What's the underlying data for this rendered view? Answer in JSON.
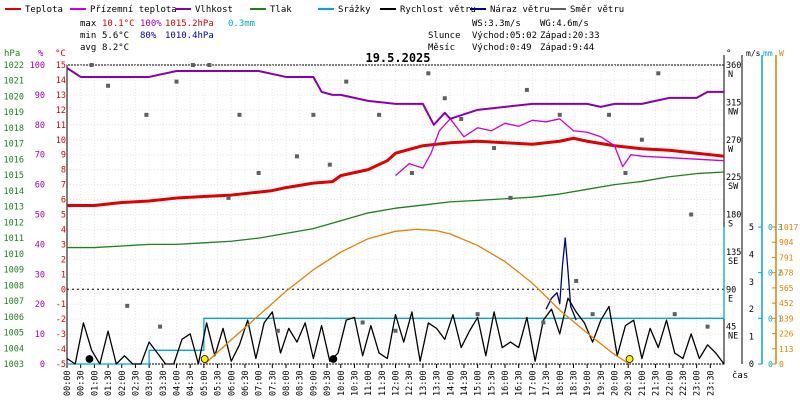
{
  "legend": [
    {
      "label": "Teplota",
      "color": "#e00000"
    },
    {
      "label": "Přízemní teplota",
      "color": "#d000d0"
    },
    {
      "label": "Vlhkost",
      "color": "#8a00b0"
    },
    {
      "label": "Tlak",
      "color": "#208020"
    },
    {
      "label": "Srážky",
      "color": "#00a8d8"
    },
    {
      "label": "Rychlost větru",
      "color": "#000000"
    },
    {
      "label": "Náraz větru",
      "color": "#000080"
    },
    {
      "label": "Směr větru",
      "color": "#606060"
    }
  ],
  "stats": {
    "max": {
      "label": "max",
      "temp": "10.1°C",
      "hum": "100%",
      "press": "1015.2hPa",
      "rain": "0.3mm"
    },
    "min": {
      "label": "min",
      "temp": "5.6°C",
      "hum": "80%",
      "press": "1010.4hPa"
    },
    "avg": {
      "label": "avg",
      "temp": "8.2°C"
    }
  },
  "wind_info": {
    "ws": "WS:3.3m/s",
    "wg": "WG:4.6m/s"
  },
  "sun_info": {
    "label": "Slunce",
    "rise": "Východ:05:02",
    "set": "Západ:20:33"
  },
  "moon_info": {
    "label": "Měsíc",
    "rise": "Východ:0:49",
    "set": "Západ:9:44"
  },
  "chart_data": {
    "type": "line",
    "title": "19.5.2025",
    "xlabel": "čas",
    "x_ticks": [
      "00:00",
      "00:30",
      "01:00",
      "01:30",
      "02:00",
      "02:30",
      "03:00",
      "03:30",
      "04:00",
      "04:30",
      "05:00",
      "05:30",
      "06:00",
      "06:30",
      "07:00",
      "07:30",
      "08:00",
      "08:30",
      "09:00",
      "09:30",
      "10:00",
      "10:30",
      "11:00",
      "11:30",
      "12:00",
      "12:30",
      "13:00",
      "13:30",
      "14:00",
      "14:30",
      "15:00",
      "15:30",
      "16:00",
      "16:30",
      "17:00",
      "17:30",
      "18:00",
      "18:30",
      "19:00",
      "19:30",
      "20:00",
      "20:30",
      "21:00",
      "21:30",
      "22:00",
      "22:30",
      "23:00",
      "23:30"
    ],
    "axes": {
      "hpa": {
        "label": "hPa",
        "color": "#208020",
        "ticks": [
          1003,
          1004,
          1005,
          1006,
          1007,
          1008,
          1009,
          1010,
          1011,
          1012,
          1013,
          1014,
          1015,
          1016,
          1017,
          1018,
          1019,
          1020,
          1021,
          1022
        ]
      },
      "pct": {
        "label": "%",
        "color": "#a000c0",
        "ticks": [
          0,
          10,
          20,
          30,
          40,
          50,
          60,
          70,
          80,
          90,
          100
        ]
      },
      "degc": {
        "label": "°C",
        "color": "#e00000",
        "ticks": [
          -5,
          -4,
          -3,
          -2,
          -1,
          0,
          1,
          2,
          3,
          4,
          5,
          6,
          7,
          8,
          9,
          10,
          11,
          12,
          13,
          14,
          15
        ]
      },
      "dir": {
        "label": "°",
        "ticks": [
          "360",
          "315",
          "270",
          "225",
          "180",
          "135",
          "90",
          "45"
        ],
        "names": [
          "N",
          "NW",
          "W",
          "SW",
          "S",
          "SE",
          "E",
          "NE"
        ]
      },
      "ms": {
        "label": "m/s",
        "ticks": [
          0,
          1,
          2,
          3,
          4,
          5
        ]
      },
      "mm": {
        "label": "mm",
        "color": "#00a8d8",
        "ticks": [
          0,
          0.1,
          0.2,
          0.3
        ],
        "display": [
          "0",
          "0.1",
          "0.2",
          "0.3"
        ]
      },
      "wm2": {
        "label": "W",
        "color": "#e88000",
        "ticks": [
          0,
          113,
          226,
          339,
          452,
          565,
          678,
          791,
          904,
          1017
        ]
      }
    },
    "series": [
      {
        "name": "Teplota",
        "color": "#e00000",
        "axis": "degc",
        "x": [
          0,
          1,
          2,
          3,
          4,
          5,
          6,
          7,
          7.5,
          8,
          9,
          9.7,
          10,
          11,
          11.7,
          12,
          13,
          14,
          15,
          16,
          17,
          18,
          18.5,
          19,
          20,
          21,
          22,
          23,
          24
        ],
        "y": [
          5.6,
          5.6,
          5.8,
          5.9,
          6.1,
          6.2,
          6.3,
          6.5,
          6.6,
          6.8,
          7.1,
          7.2,
          7.6,
          8.0,
          8.6,
          9.1,
          9.6,
          9.8,
          9.9,
          9.8,
          9.7,
          9.9,
          10.1,
          9.9,
          9.6,
          9.4,
          9.3,
          9.1,
          8.9
        ]
      },
      {
        "name": "Přízemní teplota",
        "color": "#d000d0",
        "axis": "degc",
        "x": [
          12,
          12.5,
          13,
          13.3,
          13.6,
          14,
          14.5,
          15,
          15.5,
          16,
          16.5,
          17,
          17.5,
          18,
          18.5,
          19,
          19.5,
          20,
          20.3,
          20.6,
          21,
          22,
          23,
          24
        ],
        "y": [
          7.6,
          8.4,
          8.1,
          9.1,
          10.6,
          11.4,
          10.2,
          10.8,
          10.6,
          11.1,
          10.9,
          11.3,
          11.2,
          11.4,
          10.6,
          10.5,
          10.2,
          9.6,
          8.2,
          9.0,
          8.9,
          8.8,
          8.7,
          8.6
        ]
      },
      {
        "name": "Vlhkost",
        "color": "#8a00b0",
        "axis": "pct",
        "x": [
          0,
          0.5,
          1,
          2,
          3,
          4,
          5,
          6,
          7,
          8,
          9,
          9.3,
          9.7,
          10,
          11,
          12,
          13,
          13.4,
          13.8,
          14,
          15,
          16,
          17,
          18,
          19,
          19.5,
          20,
          21,
          22,
          23,
          23.4,
          24
        ],
        "y": [
          99,
          96,
          96,
          96,
          96,
          98,
          98,
          98,
          98,
          96,
          96,
          91,
          90,
          90,
          88,
          87,
          87,
          80,
          84,
          82,
          85,
          86,
          87,
          87,
          87,
          86,
          87,
          87,
          89,
          89,
          91,
          91
        ]
      },
      {
        "name": "Tlak",
        "color": "#208020",
        "axis": "hpa",
        "x": [
          0,
          1,
          2,
          3,
          4,
          5,
          6,
          7,
          8,
          9,
          10,
          11,
          12,
          13,
          14,
          15,
          16,
          17,
          18,
          19,
          20,
          21,
          22,
          23,
          24
        ],
        "y": [
          1010.4,
          1010.4,
          1010.5,
          1010.6,
          1010.6,
          1010.7,
          1010.8,
          1011.0,
          1011.3,
          1011.6,
          1012.1,
          1012.6,
          1012.9,
          1013.1,
          1013.3,
          1013.4,
          1013.5,
          1013.6,
          1013.8,
          1014.1,
          1014.4,
          1014.6,
          1014.9,
          1015.1,
          1015.2
        ]
      },
      {
        "name": "Srážky",
        "color": "#00a8d8",
        "axis": "mm",
        "step": true,
        "x": [
          0,
          3,
          4,
          5,
          17,
          24
        ],
        "y": [
          0,
          0.03,
          0.03,
          0.1,
          0.1,
          0.3
        ]
      },
      {
        "name": "Náraz větru",
        "color": "#000080",
        "axis": "ms",
        "x": [
          17.5,
          17.7,
          17.9,
          18.0,
          18.1,
          18.2,
          18.3,
          18.4,
          18.6
        ],
        "y": [
          2.0,
          2.4,
          2.6,
          2.2,
          3.6,
          4.6,
          3.4,
          2.1,
          1.6
        ]
      },
      {
        "name": "Rychlost větru",
        "color": "#000000",
        "axis": "ms",
        "x": [
          0,
          0.3,
          0.6,
          0.9,
          1.2,
          1.5,
          1.8,
          2.1,
          2.4,
          2.7,
          3,
          3.3,
          3.6,
          3.9,
          4.2,
          4.5,
          4.8,
          5.1,
          5.4,
          5.7,
          6,
          6.3,
          6.6,
          6.9,
          7.2,
          7.5,
          7.8,
          8.1,
          8.4,
          8.7,
          9,
          9.3,
          9.6,
          9.9,
          10.2,
          10.5,
          10.8,
          11.1,
          11.4,
          11.7,
          12,
          12.3,
          12.6,
          12.9,
          13.2,
          13.5,
          13.8,
          14.1,
          14.4,
          14.7,
          15,
          15.3,
          15.6,
          15.9,
          16.2,
          16.5,
          16.8,
          17.1,
          17.4,
          17.7,
          18,
          18.3,
          18.6,
          18.9,
          19.2,
          19.5,
          19.8,
          20.1,
          20.4,
          20.7,
          21,
          21.3,
          21.6,
          21.9,
          22.2,
          22.5,
          22.8,
          23.1,
          23.4,
          23.7,
          24
        ],
        "y": [
          0.2,
          0,
          1.5,
          0.5,
          0,
          1.2,
          0,
          0.3,
          0,
          0,
          0.8,
          0.4,
          0,
          0,
          0.9,
          1.1,
          0,
          1.5,
          0.3,
          1.3,
          0.1,
          0.7,
          1.6,
          0.2,
          1.5,
          1.9,
          0.4,
          1.3,
          0.8,
          1.5,
          0.2,
          1.4,
          0.1,
          0.4,
          1.6,
          1.7,
          0.3,
          1.4,
          0.4,
          0.2,
          1.8,
          0.8,
          1.9,
          0.1,
          1.5,
          1.3,
          0.9,
          1.8,
          0.6,
          1.2,
          1.7,
          0.3,
          1.9,
          0.6,
          0.8,
          0.6,
          1.7,
          0.1,
          1.6,
          2.0,
          1.1,
          2.4,
          1.9,
          1.5,
          0.8,
          1.6,
          2.1,
          0.3,
          1.4,
          1.6,
          0.2,
          1.3,
          0.6,
          1.6,
          0.4,
          0.2,
          1.1,
          0.2,
          0.7,
          0.4,
          0
        ]
      },
      {
        "name": "Směr větru",
        "color": "#606060",
        "axis": "dir",
        "type": "scatter",
        "x": [
          0.9,
          1.5,
          2.2,
          2.9,
          3.4,
          4.0,
          4.6,
          5.2,
          5.9,
          6.3,
          7.0,
          7.7,
          8.4,
          9.0,
          9.6,
          10.2,
          10.8,
          11.4,
          12.0,
          12.6,
          13.2,
          13.8,
          14.4,
          15.0,
          15.6,
          16.2,
          16.8,
          17.4,
          18.0,
          18.6,
          19.2,
          19.8,
          20.4,
          21.0,
          21.6,
          22.2,
          22.8,
          23.4
        ],
        "y": [
          360,
          335,
          70,
          300,
          45,
          340,
          360,
          360,
          200,
          300,
          230,
          40,
          250,
          300,
          240,
          340,
          50,
          300,
          40,
          230,
          350,
          320,
          295,
          60,
          260,
          200,
          330,
          50,
          300,
          100,
          60,
          300,
          230,
          270,
          350,
          60,
          180,
          45
        ]
      },
      {
        "name": "Slunce",
        "color": "#e88000",
        "axis": "wm2",
        "x": [
          5.03,
          6,
          7,
          8,
          9,
          10,
          11,
          12,
          12.8,
          13.5,
          14,
          15,
          16,
          17,
          18,
          19,
          20,
          20.55
        ],
        "y": [
          0,
          180,
          360,
          540,
          700,
          830,
          930,
          985,
          1000,
          990,
          965,
          880,
          760,
          600,
          400,
          230,
          70,
          0
        ]
      }
    ],
    "markers": [
      {
        "name": "Měsíc východ",
        "time": 0.82,
        "color": "#000000"
      },
      {
        "name": "Slunce východ",
        "time": 5.03,
        "color": "#ffee00"
      },
      {
        "name": "Měsíc západ",
        "time": 9.73,
        "color": "#000000"
      },
      {
        "name": "Slunce západ",
        "time": 20.55,
        "color": "#ffee00"
      }
    ],
    "grid": true
  }
}
